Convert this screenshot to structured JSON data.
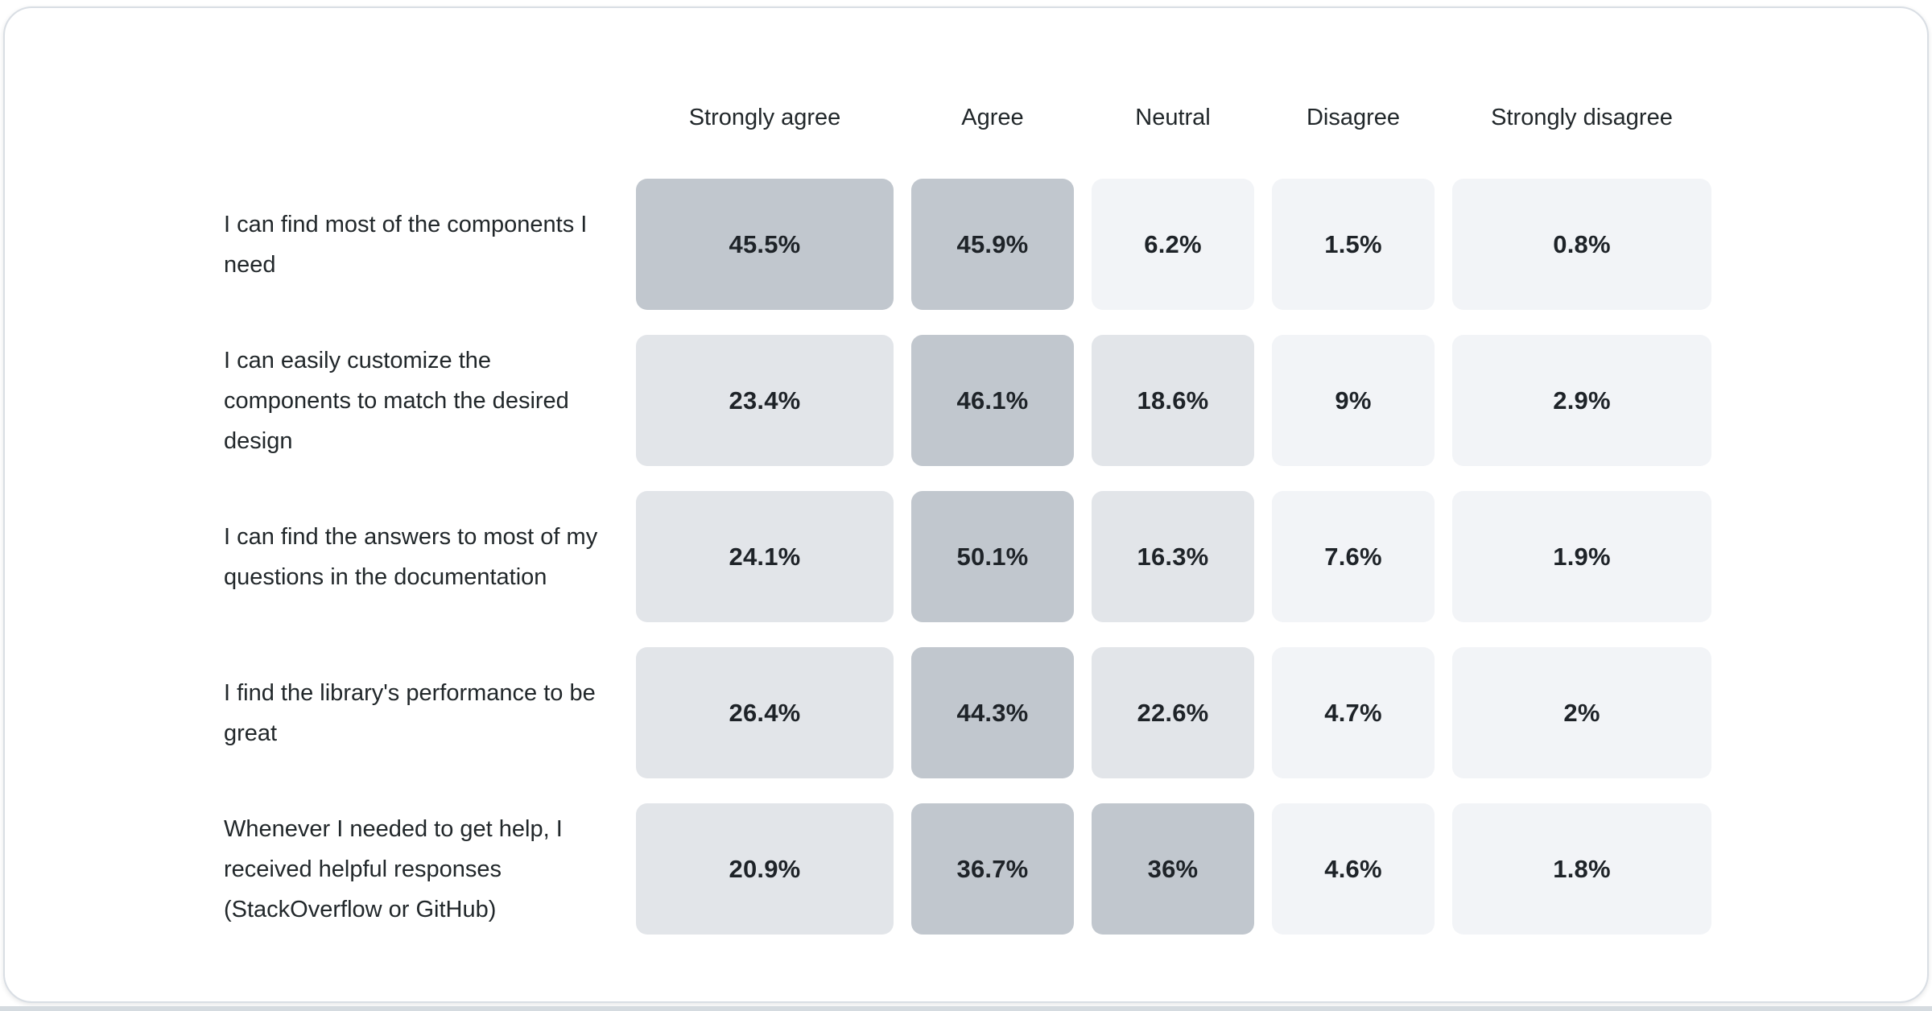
{
  "chart_data": {
    "type": "heatmap",
    "title": "",
    "legend_position": "none",
    "grid": false,
    "columns": [
      "Strongly agree",
      "Agree",
      "Neutral",
      "Disagree",
      "Strongly disagree"
    ],
    "rows": [
      {
        "label": "I can find most of the components I need",
        "values": [
          45.5,
          45.9,
          6.2,
          1.5,
          0.8
        ],
        "display": [
          "45.5%",
          "45.9%",
          "6.2%",
          "1.5%",
          "0.8%"
        ]
      },
      {
        "label": "I can easily customize the components to match the desired design",
        "values": [
          23.4,
          46.1,
          18.6,
          9,
          2.9
        ],
        "display": [
          "23.4%",
          "46.1%",
          "18.6%",
          "9%",
          "2.9%"
        ]
      },
      {
        "label": "I can find the answers to most of my questions in the documentation",
        "values": [
          24.1,
          50.1,
          16.3,
          7.6,
          1.9
        ],
        "display": [
          "24.1%",
          "50.1%",
          "16.3%",
          "7.6%",
          "1.9%"
        ]
      },
      {
        "label": "I find the library's performance to be great",
        "values": [
          26.4,
          44.3,
          22.6,
          4.7,
          2
        ],
        "display": [
          "26.4%",
          "44.3%",
          "22.6%",
          "4.7%",
          "2%"
        ]
      },
      {
        "label": "Whenever I needed to get help, I received helpful responses (StackOverflow or GitHub)",
        "values": [
          20.9,
          36.7,
          36,
          4.6,
          1.8
        ],
        "display": [
          "20.9%",
          "36.7%",
          "36%",
          "4.6%",
          "1.8%"
        ]
      }
    ],
    "colors": {
      "cell_high": "#c1c7ce",
      "cell_mid": "#e2e5e9",
      "cell_low": "#f2f4f7",
      "text": "#21272a",
      "card_border": "#d9dee4",
      "bottom_strip": "#d5dbe0"
    },
    "shade_thresholds": {
      "high_min": 30,
      "mid_min": 10
    }
  }
}
